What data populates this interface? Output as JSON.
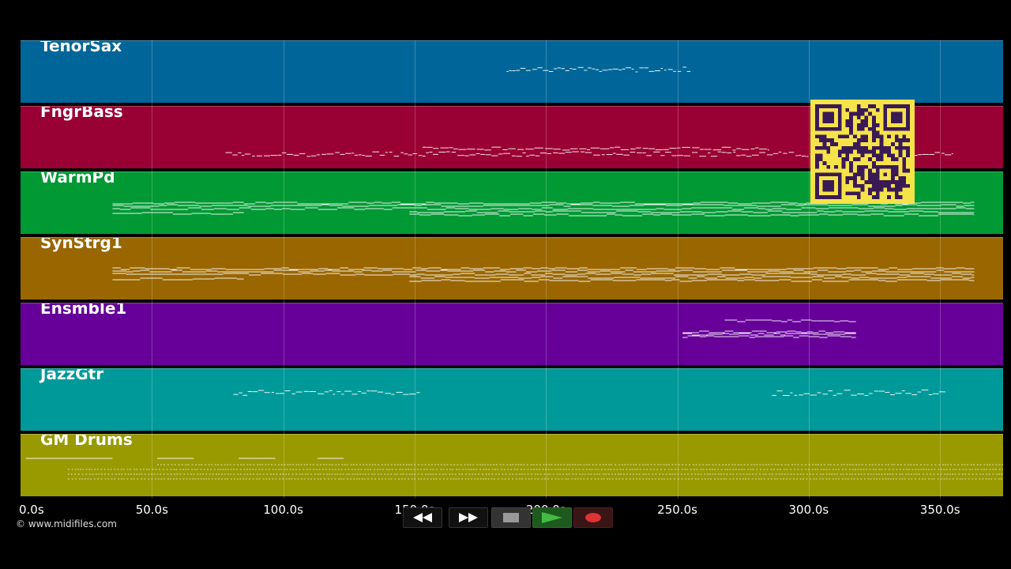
{
  "timeline": {
    "max_seconds": 374,
    "ticks": [
      "0.0s",
      "50.0s",
      "100.0s",
      "150.0s",
      "200.0s",
      "250.0s",
      "300.0s",
      "350.0s"
    ],
    "tick_values": [
      0,
      50,
      100,
      150,
      200,
      250,
      300,
      350
    ]
  },
  "tracks": [
    {
      "name": "TenorSax",
      "color": "#006699"
    },
    {
      "name": "FngrBass",
      "color": "#990033"
    },
    {
      "name": "WarmPd",
      "color": "#009933"
    },
    {
      "name": "SynStrg1",
      "color": "#996600"
    },
    {
      "name": "Ensmble1",
      "color": "#660099"
    },
    {
      "name": "JazzGtr",
      "color": "#009999"
    },
    {
      "name": "GM Drums",
      "color": "#999900"
    }
  ],
  "copyright": "© www.midifiles.com",
  "qr_code": {
    "foreground": "#3a1a55",
    "background": "#f5e34a"
  },
  "transport": {
    "rewind": {
      "icon": "rewind-icon"
    },
    "fast_forward": {
      "icon": "fast-forward-icon"
    },
    "stop": {
      "icon": "stop-icon"
    },
    "play": {
      "icon": "play-icon",
      "color": "#44bb44"
    },
    "record": {
      "icon": "record-icon",
      "color": "#dd3333"
    }
  }
}
